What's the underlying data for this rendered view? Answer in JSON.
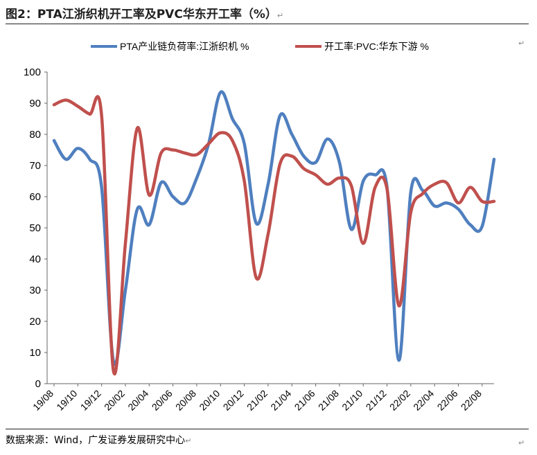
{
  "figure_title": "图2：PTA江浙织机开工率及PVC华东开工率（%）",
  "source": "数据来源：Wind，广发证券发展研究中心",
  "chart_data": {
    "type": "line",
    "title": "",
    "xlabel": "",
    "ylabel": "",
    "ylim": [
      0,
      100
    ],
    "yticks": [
      0,
      10,
      20,
      30,
      40,
      50,
      60,
      70,
      80,
      90,
      100
    ],
    "grid": false,
    "legend_position": "top",
    "x_tick_labels": [
      "19/08",
      "19/10",
      "19/12",
      "20/02",
      "20/04",
      "20/06",
      "20/08",
      "20/10",
      "20/12",
      "21/02",
      "21/04",
      "21/06",
      "21/08",
      "21/10",
      "21/12",
      "22/02",
      "22/04",
      "22/06",
      "22/08"
    ],
    "series": [
      {
        "name": "PTA产业链负荷率:江浙织机 %",
        "color": "#4F7FBF",
        "values": [
          78,
          72,
          75.5,
          72,
          63,
          7,
          30,
          56,
          51,
          64.5,
          60,
          58,
          66,
          77,
          93.5,
          85,
          77,
          51.5,
          64,
          86,
          80,
          73,
          71,
          78.5,
          71,
          49.5,
          65,
          67,
          63,
          7.5,
          61.5,
          62,
          57,
          58,
          56,
          51,
          50.5,
          72
        ]
      },
      {
        "name": "开工率:PVC:华东下游 %",
        "color": "#C0504D",
        "values": [
          89.5,
          91,
          89,
          86.5,
          86,
          4,
          45,
          82,
          60.5,
          74,
          75,
          74,
          73.5,
          77,
          80.5,
          78,
          65,
          34,
          48,
          70.5,
          73,
          69,
          67,
          64,
          66,
          63.5,
          45,
          63,
          62.5,
          25,
          55,
          61,
          64,
          64.5,
          58,
          63,
          58.5,
          58.5
        ]
      }
    ]
  }
}
